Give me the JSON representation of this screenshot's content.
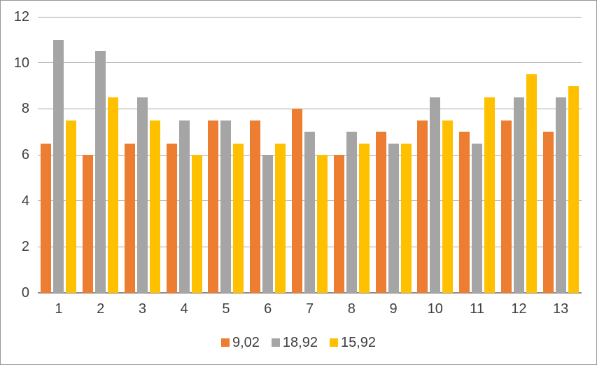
{
  "chart_data": {
    "type": "bar",
    "title": "",
    "xlabel": "",
    "ylabel": "",
    "categories": [
      "1",
      "2",
      "3",
      "4",
      "5",
      "6",
      "7",
      "8",
      "9",
      "10",
      "11",
      "12",
      "13"
    ],
    "series": [
      {
        "name": "9,02",
        "color": "#ED7D31",
        "values": [
          6.5,
          6.0,
          6.5,
          6.5,
          7.5,
          7.5,
          8.0,
          6.0,
          7.0,
          7.5,
          7.0,
          7.5,
          7.0
        ]
      },
      {
        "name": "18,92",
        "color": "#A5A5A5",
        "values": [
          11.0,
          10.5,
          8.5,
          7.5,
          7.5,
          6.0,
          7.0,
          7.0,
          6.5,
          8.5,
          6.5,
          8.5,
          8.5
        ]
      },
      {
        "name": "15,92",
        "color": "#FFC000",
        "values": [
          7.5,
          8.5,
          7.5,
          6.0,
          6.5,
          6.5,
          6.0,
          6.5,
          6.5,
          7.5,
          8.5,
          9.5,
          9.0
        ]
      }
    ],
    "ylim": [
      0,
      12
    ],
    "yticks": [
      0,
      2,
      4,
      6,
      8,
      10,
      12
    ],
    "grid": true,
    "legend_position": "bottom"
  },
  "colors": {
    "text": "#404040",
    "gridline": "#A6A6A6",
    "axis_line": "#8C8C8C",
    "frame_border": "#969696",
    "background": "#FFFFFF"
  }
}
